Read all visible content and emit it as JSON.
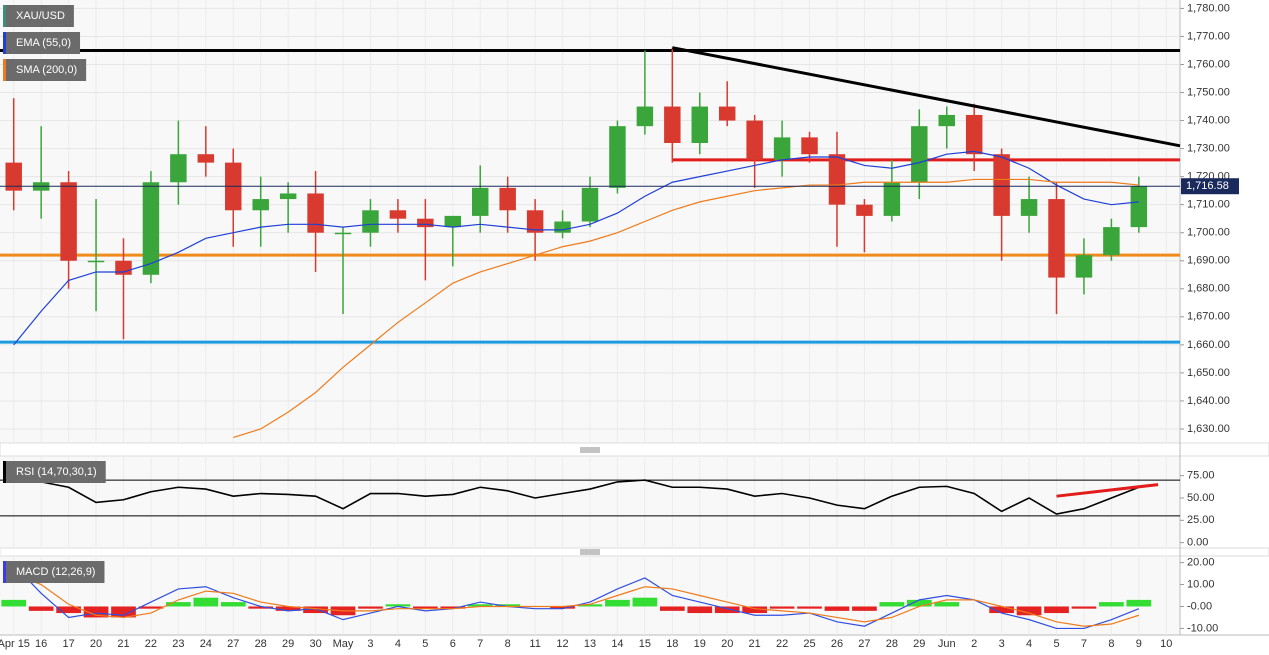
{
  "chart_data": [
    {
      "type": "candlestick",
      "ylim": [
        1625,
        1783
      ],
      "yticks": [
        {
          "value": 1630,
          "label": "1,630.00"
        },
        {
          "value": 1640,
          "label": "1,640.00"
        },
        {
          "value": 1650,
          "label": "1,650.00"
        },
        {
          "value": 1660,
          "label": "1,660.00"
        },
        {
          "value": 1670,
          "label": "1,670.00"
        },
        {
          "value": 1680,
          "label": "1,680.00"
        },
        {
          "value": 1690,
          "label": "1,690.00"
        },
        {
          "value": 1700,
          "label": "1,700.00"
        },
        {
          "value": 1710,
          "label": "1,710.00"
        },
        {
          "value": 1720,
          "label": "1,720.00"
        },
        {
          "value": 1730,
          "label": "1,730.00"
        },
        {
          "value": 1740,
          "label": "1,740.00"
        },
        {
          "value": 1750,
          "label": "1,750.00"
        },
        {
          "value": 1760,
          "label": "1,760.00"
        },
        {
          "value": 1770,
          "label": "1,770.00"
        },
        {
          "value": 1780,
          "label": "1,780.00"
        }
      ],
      "grid": true,
      "series": [
        {
          "name": "XAU/USD",
          "type": "candlestick",
          "color": "#3b8f7a",
          "up_color": "#3aa53a",
          "down_color": "#d83a2f",
          "open": [
            1725,
            1715,
            1718,
            1690,
            1690,
            1685,
            1718,
            1728,
            1725,
            1708,
            1712,
            1714,
            1700,
            1700,
            1708,
            1705,
            1702,
            1706,
            1716,
            1708,
            1700,
            1704,
            1716,
            1738,
            1745,
            1732,
            1745,
            1740,
            1726,
            1734,
            1728,
            1710,
            1706,
            1718,
            1738,
            1742,
            1728,
            1706,
            1712,
            1684,
            1692,
            1702,
            null
          ],
          "high": [
            1748,
            1738,
            1722,
            1712,
            1698,
            1722,
            1740,
            1738,
            1730,
            1720,
            1718,
            1722,
            1702,
            1712,
            1712,
            1712,
            1706,
            1724,
            1720,
            1712,
            1708,
            1720,
            1740,
            1765,
            1766,
            1750,
            1754,
            1742,
            1740,
            1736,
            1736,
            1712,
            1726,
            1744,
            1745,
            1746,
            1730,
            1720,
            1718,
            1698,
            1705,
            1720,
            null
          ],
          "low": [
            1708,
            1705,
            1680,
            1672,
            1662,
            1682,
            1710,
            1720,
            1695,
            1695,
            1700,
            1686,
            1671,
            1695,
            1700,
            1683,
            1688,
            1700,
            1700,
            1690,
            1698,
            1702,
            1714,
            1735,
            1725,
            1728,
            1738,
            1716,
            1720,
            1725,
            1695,
            1693,
            1704,
            1712,
            1730,
            1722,
            1690,
            1700,
            1671,
            1678,
            1690,
            1700,
            null
          ],
          "close": [
            1715,
            1718,
            1690,
            1690,
            1685,
            1718,
            1728,
            1725,
            1708,
            1712,
            1714,
            1700,
            1700,
            1708,
            1705,
            1702,
            1706,
            1716,
            1708,
            1700,
            1704,
            1716,
            1738,
            1745,
            1732,
            1745,
            1740,
            1726,
            1734,
            1728,
            1710,
            1706,
            1718,
            1738,
            1742,
            1728,
            1706,
            1712,
            1684,
            1692,
            1702,
            1716.58,
            null
          ]
        },
        {
          "name": "EMA (55,0)",
          "type": "line",
          "color": "#1f3fd6",
          "values": [
            1660,
            1672,
            1683,
            1686,
            1686,
            1689,
            1693,
            1698,
            1700,
            1702,
            1703,
            1703,
            1702,
            1703,
            1703,
            1703,
            1702,
            1703,
            1702,
            1701,
            1701,
            1703,
            1707,
            1713,
            1718,
            1720,
            1722,
            1724,
            1726,
            1727,
            1727,
            1724,
            1723,
            1725,
            1728,
            1729,
            1727,
            1723,
            1717,
            1712,
            1710,
            1711,
            null
          ]
        },
        {
          "name": "SMA (200,0)",
          "type": "line",
          "color": "#f07a1a",
          "values": [
            null,
            null,
            null,
            null,
            null,
            null,
            null,
            null,
            1627,
            1630,
            1636,
            1643,
            1652,
            1660,
            1668,
            1675,
            1682,
            1686,
            1689,
            1692,
            1695,
            1697,
            1700,
            1704,
            1708,
            1711,
            1713,
            1715,
            1716,
            1717,
            1717,
            1718,
            1718,
            1718,
            1718,
            1719,
            1719,
            1719,
            1718,
            1718,
            1718,
            1717,
            null
          ]
        }
      ],
      "levels": [
        {
          "value": 1765,
          "color": "#000000",
          "from": -0.5
        },
        {
          "value": 1726,
          "color": "#e21b1b",
          "from": 24
        },
        {
          "value": 1692,
          "color": "#f08a1a",
          "from": -0.5
        },
        {
          "value": 1661,
          "color": "#1d9be0",
          "from": -0.5
        }
      ],
      "trendlines": [
        {
          "x": [
            24,
            42.5
          ],
          "values": [
            1766,
            1731
          ],
          "color": "#000000"
        }
      ],
      "last_price": {
        "value": 1716.58,
        "label": "1,716.58"
      }
    },
    {
      "type": "line",
      "ylim": [
        -6,
        97
      ],
      "yticks": [
        {
          "value": 0,
          "label": "0.00"
        },
        {
          "value": 25,
          "label": "25.00"
        },
        {
          "value": 50,
          "label": "50.00"
        },
        {
          "value": 75,
          "label": "75.00"
        }
      ],
      "series": [
        {
          "name": "RSI (14,70,30,1)",
          "type": "line",
          "color": "#000000",
          "values": [
            78,
            68,
            62,
            45,
            48,
            57,
            62,
            60,
            52,
            55,
            54,
            52,
            38,
            55,
            55,
            52,
            54,
            62,
            58,
            50,
            55,
            60,
            68,
            70,
            62,
            62,
            60,
            52,
            55,
            50,
            42,
            38,
            52,
            62,
            63,
            55,
            35,
            50,
            32,
            38,
            50,
            62,
            null
          ]
        }
      ],
      "levels": [
        {
          "value": 70,
          "color": "#000000",
          "from": -0.5
        },
        {
          "value": 30,
          "color": "#000000",
          "from": -0.5
        }
      ],
      "trendlines": [
        {
          "x": [
            38,
            41.7
          ],
          "values": [
            52,
            65
          ],
          "color": "#e21b1b"
        }
      ]
    },
    {
      "type": "bar",
      "ylim": [
        -13,
        23
      ],
      "yticks": [
        {
          "value": 20,
          "label": "20.00"
        },
        {
          "value": 10,
          "label": "10.00"
        },
        {
          "value": 0,
          "label": "-0.00"
        },
        {
          "value": -10,
          "label": "-10.00"
        }
      ],
      "categories": [
        "Apr 15",
        "16",
        "17",
        "20",
        "21",
        "22",
        "23",
        "24",
        "27",
        "28",
        "29",
        "30",
        "May",
        "3",
        "4",
        "5",
        "6",
        "7",
        "8",
        "11",
        "12",
        "13",
        "14",
        "15",
        "18",
        "19",
        "20",
        "21",
        "22",
        "25",
        "26",
        "27",
        "28",
        "29",
        "Jun",
        "2",
        "3",
        "4",
        "5",
        "7",
        "8",
        "9",
        "10"
      ],
      "series": [
        {
          "name": "MACD (12,26,9)",
          "type": "bar",
          "color": "#3a3af0",
          "up_color": "#33dd33",
          "down_color": "#e52222",
          "values": [
            3,
            -2,
            -3,
            -5,
            -5,
            -1,
            2,
            4,
            2,
            -1,
            -2,
            -3,
            -4,
            -1,
            1,
            -1,
            -1,
            1,
            1,
            0,
            -1,
            1,
            3,
            4,
            -2,
            -3,
            -3,
            -3,
            -1,
            -1,
            -2,
            -2,
            2,
            3,
            2,
            0,
            -3,
            -4,
            -3,
            -1,
            2,
            3,
            null
          ]
        },
        {
          "type": "line",
          "color": "#2f4fe0",
          "values": [
            19,
            6,
            -5,
            -3,
            -4,
            2,
            8,
            9,
            4,
            0,
            -2,
            -1,
            -6,
            -3,
            0,
            -2,
            -1,
            2,
            0,
            -1,
            -1,
            2,
            8,
            13,
            5,
            2,
            -1,
            -4,
            -4,
            -3,
            -7,
            -9,
            -3,
            3,
            5,
            3,
            -3,
            -6,
            -10,
            -10,
            -6,
            -1,
            null
          ]
        },
        {
          "type": "line",
          "color": "#f07a1a",
          "values": [
            15,
            10,
            1,
            -4,
            -5,
            -3,
            3,
            7,
            6,
            2,
            0,
            -1,
            -2,
            -2,
            -1,
            -1,
            -1,
            0,
            0,
            0,
            0,
            1,
            5,
            9,
            8,
            5,
            2,
            -1,
            -2,
            -3,
            -5,
            -7,
            -5,
            0,
            3,
            3,
            0,
            -3,
            -7,
            -9,
            -8,
            -4,
            null
          ]
        }
      ]
    }
  ]
}
